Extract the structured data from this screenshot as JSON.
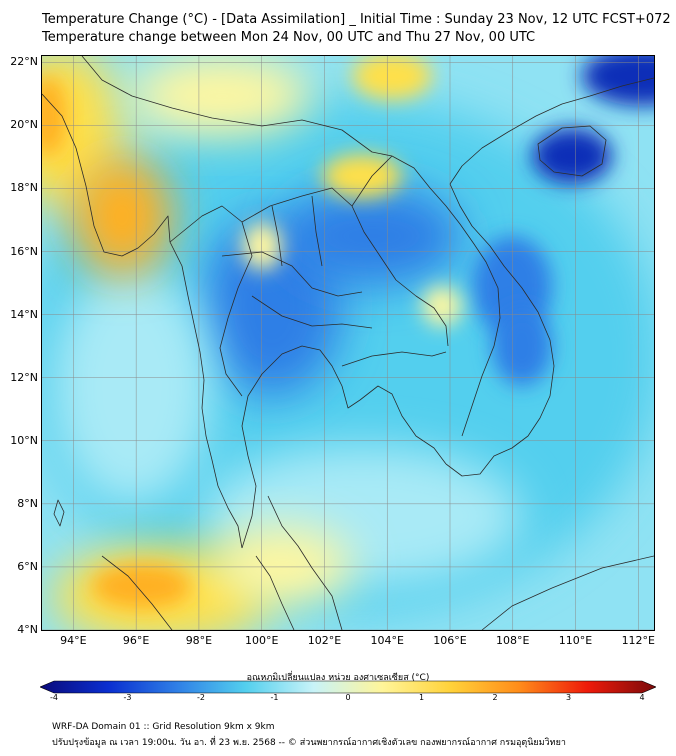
{
  "header": {
    "title_line1": "Temperature Change (°C) - [Data Assimilation] _ Initial Time : Sunday 23 Nov, 12 UTC FCST+072",
    "title_line2": "Temperature change between Mon 24 Nov, 00 UTC and Thu 27 Nov, 00 UTC"
  },
  "map": {
    "region": "Mainland Southeast Asia",
    "lon_range": [
      93,
      112.5
    ],
    "lat_range": [
      4,
      22.2
    ],
    "lat_labels": [
      "22°N",
      "20°N",
      "18°N",
      "16°N",
      "14°N",
      "12°N",
      "10°N",
      "8°N",
      "6°N",
      "4°N"
    ],
    "lon_labels": [
      "94°E",
      "96°E",
      "98°E",
      "100°E",
      "102°E",
      "104°E",
      "106°E",
      "108°E",
      "110°E",
      "112°E"
    ],
    "grid": true,
    "field_colors": {
      "dark_blue": "#0a2fb8",
      "blue": "#2f7fe6",
      "light_blue": "#53cfee",
      "pale_cyan": "#a9eaf6",
      "pale_yellow": "#fff7a0",
      "yellow": "#ffe04a",
      "orange": "#ffb020",
      "red_orange": "#ff5a10"
    }
  },
  "colorbar": {
    "title": "อุณหภูมิเปลี่ยนแปลง หน่วย องศาเซลเซียส (°C)",
    "ticks": [
      "-4",
      "-3",
      "-2",
      "-1",
      "0",
      "1",
      "2",
      "3",
      "4"
    ],
    "range": [
      -4,
      4
    ],
    "colors": [
      "#0a0a7a",
      "#0a2fd0",
      "#2f7fe6",
      "#53cfee",
      "#c8f3f8",
      "#fff59a",
      "#ffd23a",
      "#ff8c1a",
      "#ee1a0a",
      "#7a0a0a"
    ]
  },
  "footer": {
    "line1": "WRF-DA Domain 01 :: Grid Resolution 9km x 9km",
    "line2": "ปรับปรุงข้อมูล ณ เวลา 19:00น. วัน อา. ที่ 23 พ.ย. 2568 -- © ส่วนพยากรณ์อากาศเชิงตัวเลข กองพยากรณ์อากาศ กรมอุตุนิยมวิทยา"
  }
}
